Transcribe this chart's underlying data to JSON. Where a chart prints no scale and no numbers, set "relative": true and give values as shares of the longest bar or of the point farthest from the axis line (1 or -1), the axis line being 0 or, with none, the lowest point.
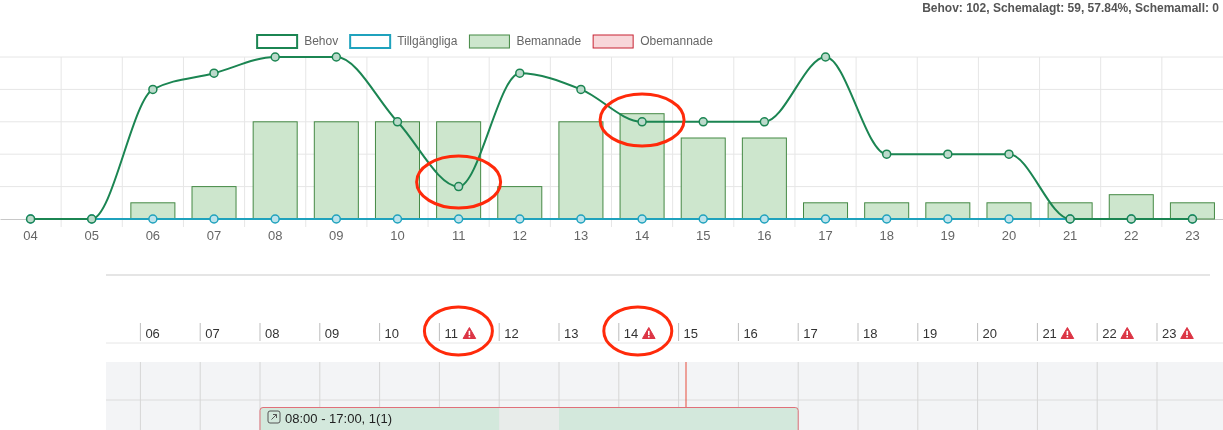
{
  "chart_data": {
    "type": "bar",
    "relative": true,
    "categories": [
      "04",
      "05",
      "06",
      "07",
      "08",
      "09",
      "10",
      "11",
      "12",
      "13",
      "14",
      "15",
      "16",
      "17",
      "18",
      "19",
      "20",
      "21",
      "22",
      "23"
    ],
    "series": [
      {
        "name": "Behov",
        "type": "line",
        "color": "#1b8552",
        "values": [
          0,
          0,
          0.8,
          0.9,
          1,
          1,
          0.6,
          0.2,
          0.9,
          0.8,
          0.6,
          0.6,
          0.6,
          1,
          0.4,
          0.4,
          0.4,
          0,
          0,
          0
        ]
      },
      {
        "name": "Tillgängliga",
        "type": "line",
        "color": "#1fa2bd",
        "values": [
          0,
          0,
          0,
          0,
          0,
          0,
          0,
          0,
          0,
          0,
          0,
          0,
          0,
          0,
          0,
          0,
          0,
          0,
          0,
          0
        ]
      },
      {
        "name": "Bemannade",
        "color": "#cde6cd",
        "values": [
          null,
          null,
          0.1,
          0.2,
          0.6,
          0.6,
          0.6,
          0.6,
          0.2,
          0.6,
          0.65,
          0.5,
          0.5,
          0.1,
          0.1,
          0.1,
          0.1,
          0.1,
          0.15,
          0.1
        ]
      },
      {
        "name": "Obemannade",
        "color": "#f8d7da",
        "values": [
          null,
          null,
          null,
          null,
          null,
          null,
          null,
          null,
          null,
          null,
          null,
          null,
          null,
          null,
          null,
          null,
          null,
          null,
          null,
          null
        ]
      }
    ],
    "legend": "top",
    "grid": true,
    "marker": "circle",
    "line_style": "solid",
    "annotations": [
      "Behov: 102, Schemalagt: 59, 57.84%, Schemamall: 0",
      "08:00 - 17:00, 1(1)"
    ]
  }
}
